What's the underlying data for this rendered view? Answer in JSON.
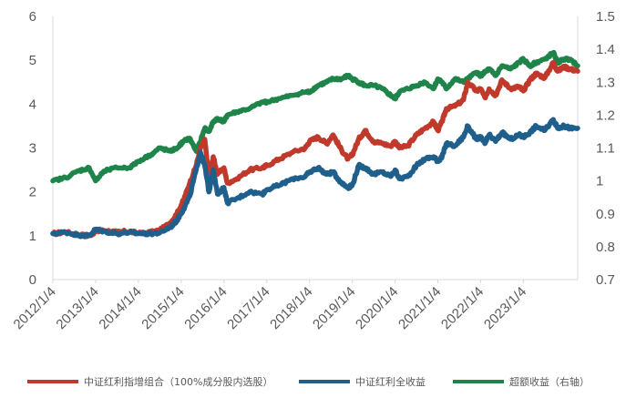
{
  "chart_data": {
    "type": "line",
    "title": "",
    "xlabel": "",
    "ylabel": "",
    "x_ticks": [
      "2012/1/4",
      "2013/1/4",
      "2014/1/4",
      "2015/1/4",
      "2016/1/4",
      "2017/1/4",
      "2018/1/4",
      "2019/1/4",
      "2020/1/4",
      "2021/1/4",
      "2022/1/4",
      "2023/1/4"
    ],
    "ylim_left": [
      0,
      6
    ],
    "y_ticks_left": [
      "0",
      "1",
      "2",
      "3",
      "4",
      "5",
      "6"
    ],
    "ylim_right": [
      0.7,
      1.5
    ],
    "y_ticks_right": [
      "0.7",
      "0.8",
      "0.9",
      "1",
      "1.1",
      "1.2",
      "1.3",
      "1.4",
      "1.5"
    ],
    "x_range": [
      2012.0,
      2024.27
    ],
    "grid": false,
    "legend_position": "bottom",
    "colors": {
      "red": "#c0392b",
      "blue": "#1f5f8b",
      "green": "#1e8449"
    },
    "series": [
      {
        "name": "中证红利指增组合（100%成分股内选股）",
        "axis": "left",
        "color": "#c0392b",
        "x": [
          2012.0,
          2012.3,
          2012.6,
          2012.85,
          2013.0,
          2013.2,
          2013.5,
          2013.8,
          2014.0,
          2014.3,
          2014.5,
          2014.75,
          2014.9,
          2015.05,
          2015.2,
          2015.35,
          2015.45,
          2015.55,
          2015.65,
          2015.75,
          2015.85,
          2016.0,
          2016.08,
          2016.3,
          2016.6,
          2016.9,
          2017.0,
          2017.3,
          2017.6,
          2017.9,
          2018.0,
          2018.2,
          2018.4,
          2018.55,
          2018.75,
          2018.9,
          2019.0,
          2019.15,
          2019.3,
          2019.5,
          2019.7,
          2019.9,
          2020.0,
          2020.1,
          2020.3,
          2020.5,
          2020.7,
          2020.9,
          2021.0,
          2021.1,
          2021.2,
          2021.4,
          2021.6,
          2021.7,
          2021.9,
          2022.0,
          2022.1,
          2022.2,
          2022.35,
          2022.5,
          2022.7,
          2022.9,
          2023.0,
          2023.15,
          2023.3,
          2023.5,
          2023.7,
          2023.8,
          2023.95,
          2024.1,
          2024.27
        ],
        "values": [
          1.05,
          1.08,
          1.02,
          1.0,
          1.1,
          1.12,
          1.08,
          1.1,
          1.05,
          1.08,
          1.12,
          1.3,
          1.5,
          1.8,
          2.2,
          2.6,
          3.0,
          3.2,
          2.3,
          2.8,
          2.4,
          2.55,
          2.2,
          2.3,
          2.5,
          2.55,
          2.6,
          2.75,
          2.9,
          3.0,
          3.15,
          3.25,
          3.1,
          3.3,
          2.95,
          2.75,
          2.85,
          3.2,
          3.4,
          3.15,
          3.1,
          3.05,
          3.15,
          3.0,
          3.05,
          3.3,
          3.45,
          3.6,
          3.4,
          3.6,
          3.9,
          3.95,
          4.1,
          4.5,
          4.3,
          4.35,
          4.15,
          4.35,
          4.2,
          4.55,
          4.35,
          4.4,
          4.3,
          4.55,
          4.7,
          4.6,
          4.95,
          4.75,
          4.85,
          4.8,
          4.75
        ]
      },
      {
        "name": "中证红利全收益",
        "axis": "left",
        "color": "#1f5f8b",
        "x": [
          2012.0,
          2012.3,
          2012.6,
          2012.85,
          2013.0,
          2013.2,
          2013.5,
          2013.8,
          2014.0,
          2014.3,
          2014.5,
          2014.75,
          2014.9,
          2015.05,
          2015.2,
          2015.35,
          2015.45,
          2015.55,
          2015.65,
          2015.75,
          2015.85,
          2016.0,
          2016.08,
          2016.3,
          2016.6,
          2016.9,
          2017.0,
          2017.3,
          2017.6,
          2017.9,
          2018.0,
          2018.2,
          2018.4,
          2018.55,
          2018.75,
          2018.9,
          2019.0,
          2019.15,
          2019.3,
          2019.5,
          2019.7,
          2019.9,
          2020.0,
          2020.1,
          2020.3,
          2020.5,
          2020.7,
          2020.9,
          2021.0,
          2021.1,
          2021.2,
          2021.4,
          2021.6,
          2021.7,
          2021.9,
          2022.0,
          2022.1,
          2022.2,
          2022.35,
          2022.5,
          2022.7,
          2022.9,
          2023.0,
          2023.15,
          2023.3,
          2023.5,
          2023.7,
          2023.8,
          2023.95,
          2024.1,
          2024.27
        ],
        "values": [
          1.05,
          1.08,
          1.02,
          1.0,
          1.15,
          1.1,
          1.05,
          1.08,
          1.05,
          1.05,
          1.07,
          1.2,
          1.35,
          1.6,
          1.9,
          2.5,
          2.9,
          2.6,
          2.0,
          2.5,
          1.95,
          2.1,
          1.75,
          1.85,
          2.0,
          1.95,
          2.05,
          2.15,
          2.3,
          2.35,
          2.45,
          2.55,
          2.4,
          2.45,
          2.2,
          2.1,
          2.15,
          2.6,
          2.55,
          2.4,
          2.45,
          2.35,
          2.5,
          2.3,
          2.35,
          2.6,
          2.75,
          2.8,
          2.7,
          2.8,
          3.1,
          3.05,
          3.25,
          3.5,
          3.2,
          3.25,
          3.1,
          3.3,
          3.15,
          3.35,
          3.2,
          3.3,
          3.25,
          3.35,
          3.5,
          3.4,
          3.65,
          3.45,
          3.5,
          3.45,
          3.45
        ]
      },
      {
        "name": "超额收益（右轴）",
        "axis": "right",
        "color": "#1e8449",
        "x": [
          2012.0,
          2012.3,
          2012.6,
          2012.85,
          2013.0,
          2013.2,
          2013.5,
          2013.8,
          2014.0,
          2014.3,
          2014.5,
          2014.75,
          2014.9,
          2015.05,
          2015.2,
          2015.35,
          2015.45,
          2015.55,
          2015.65,
          2015.75,
          2015.85,
          2016.0,
          2016.08,
          2016.3,
          2016.6,
          2016.9,
          2017.0,
          2017.3,
          2017.6,
          2017.9,
          2018.0,
          2018.2,
          2018.4,
          2018.55,
          2018.75,
          2018.9,
          2019.0,
          2019.15,
          2019.3,
          2019.5,
          2019.7,
          2019.9,
          2020.0,
          2020.1,
          2020.3,
          2020.5,
          2020.7,
          2020.9,
          2021.0,
          2021.1,
          2021.2,
          2021.4,
          2021.6,
          2021.7,
          2021.9,
          2022.0,
          2022.1,
          2022.2,
          2022.35,
          2022.5,
          2022.7,
          2022.9,
          2023.0,
          2023.15,
          2023.3,
          2023.5,
          2023.7,
          2023.8,
          2023.95,
          2024.1,
          2024.27
        ],
        "values": [
          1.0,
          1.01,
          1.03,
          1.04,
          1.0,
          1.03,
          1.04,
          1.04,
          1.06,
          1.08,
          1.1,
          1.09,
          1.1,
          1.12,
          1.13,
          1.09,
          1.12,
          1.16,
          1.15,
          1.18,
          1.19,
          1.18,
          1.2,
          1.21,
          1.22,
          1.24,
          1.24,
          1.25,
          1.26,
          1.27,
          1.27,
          1.29,
          1.3,
          1.31,
          1.31,
          1.32,
          1.31,
          1.3,
          1.29,
          1.29,
          1.28,
          1.26,
          1.25,
          1.27,
          1.28,
          1.29,
          1.3,
          1.28,
          1.31,
          1.3,
          1.28,
          1.31,
          1.3,
          1.31,
          1.33,
          1.32,
          1.33,
          1.34,
          1.32,
          1.35,
          1.34,
          1.36,
          1.37,
          1.35,
          1.36,
          1.37,
          1.39,
          1.36,
          1.37,
          1.37,
          1.35
        ]
      }
    ]
  }
}
